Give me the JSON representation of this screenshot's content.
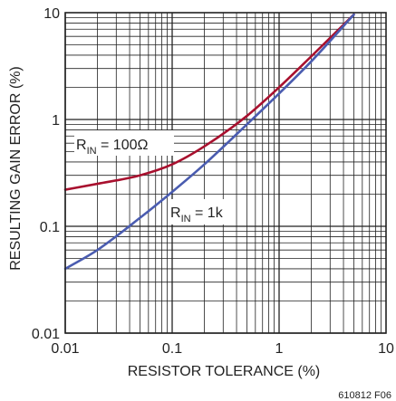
{
  "chart_data": {
    "type": "line",
    "x_scale": "log",
    "y_scale": "log",
    "xlabel": "RESISTOR TOLERANCE (%)",
    "ylabel": "RESULTING GAIN ERROR (%)",
    "xlim": [
      0.01,
      10
    ],
    "ylim": [
      0.01,
      10
    ],
    "x_ticks": [
      "0.01",
      "0.1",
      "1",
      "10"
    ],
    "y_ticks": [
      "0.01",
      "0.1",
      "1",
      "10"
    ],
    "grid": true,
    "series": [
      {
        "name": "R_IN = 100Ω",
        "label_main": "R",
        "label_sub": "IN",
        "label_rest": " = 100Ω",
        "color": "#a8102e",
        "x": [
          0.01,
          0.02,
          0.05,
          0.1,
          0.2,
          0.5,
          1,
          2,
          5
        ],
        "y": [
          0.22,
          0.25,
          0.3,
          0.38,
          0.56,
          1.08,
          2.0,
          3.9,
          9.6
        ]
      },
      {
        "name": "R_IN = 1k",
        "label_main": "R",
        "label_sub": "IN",
        "label_rest": " = 1k",
        "color": "#4a5cb0",
        "x": [
          0.01,
          0.02,
          0.05,
          0.1,
          0.2,
          0.5,
          1,
          2,
          5
        ],
        "y": [
          0.04,
          0.06,
          0.12,
          0.21,
          0.38,
          0.9,
          1.75,
          3.5,
          9.6
        ]
      }
    ]
  },
  "footnote": "610812 F06"
}
